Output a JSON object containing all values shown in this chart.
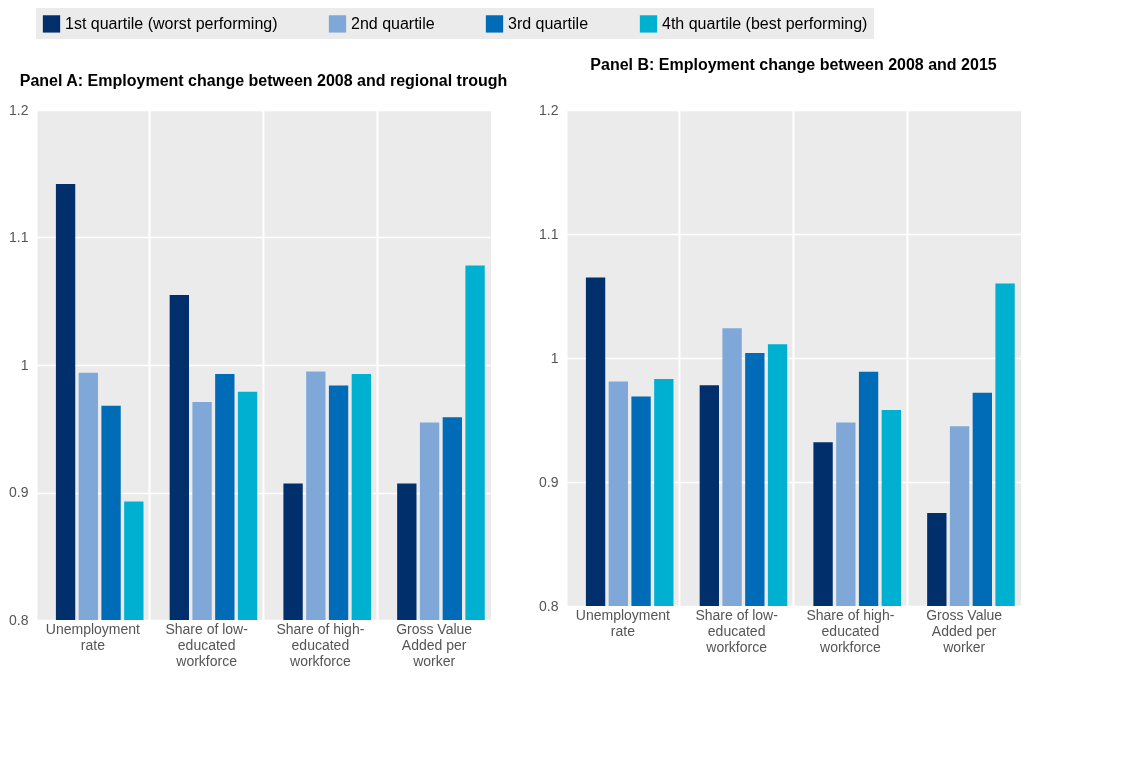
{
  "chart_data": [
    {
      "type": "bar",
      "title": "Panel A: Employment change between 2008 and regional trough",
      "categories": [
        "Unemployment rate",
        "Share of low-educated workforce",
        "Share of high-educated workforce",
        "Gross Value Added per worker"
      ],
      "ylim": [
        0.8,
        1.2
      ],
      "yticks": [
        0.8,
        0.9,
        {
          "value": 1,
          "label": "1"
        },
        1.1,
        1.2
      ],
      "grid": true,
      "legend": "top",
      "series": [
        {
          "name": "1st quartile (worst performing)",
          "color": "#002f6c",
          "values": [
            1.142,
            1.055,
            0.907,
            0.907
          ]
        },
        {
          "name": "2nd quartile",
          "color": "#7fa8d9",
          "values": [
            0.994,
            0.971,
            0.995,
            0.955
          ]
        },
        {
          "name": "3rd quartile",
          "color": "#006bb6",
          "values": [
            0.968,
            0.993,
            0.984,
            0.959
          ]
        },
        {
          "name": "4th quartile (best performing)",
          "color": "#00b0d0",
          "values": [
            0.893,
            0.979,
            0.993,
            1.078
          ]
        }
      ]
    },
    {
      "type": "bar",
      "title": "Panel B: Employment change between 2008 and 2015",
      "categories": [
        "Unemployment rate",
        "Share of low-educated workforce",
        "Share of high-educated workforce",
        "Gross Value Added per worker"
      ],
      "ylim": [
        0.8,
        1.2
      ],
      "yticks": [
        0.8,
        0.9,
        {
          "value": 1,
          "label": "1"
        },
        1.1,
        1.2
      ],
      "grid": true,
      "legend": "top",
      "series": [
        {
          "name": "1st quartile (worst performing)",
          "color": "#002f6c",
          "values": [
            1.065,
            0.978,
            0.932,
            0.875
          ]
        },
        {
          "name": "2nd quartile",
          "color": "#7fa8d9",
          "values": [
            0.981,
            1.024,
            0.948,
            0.945
          ]
        },
        {
          "name": "3rd quartile",
          "color": "#006bb6",
          "values": [
            0.969,
            1.004,
            0.989,
            0.972
          ]
        },
        {
          "name": "4th quartile (best performing)",
          "color": "#00b0d0",
          "values": [
            0.983,
            1.011,
            0.958,
            1.06
          ]
        }
      ]
    }
  ]
}
